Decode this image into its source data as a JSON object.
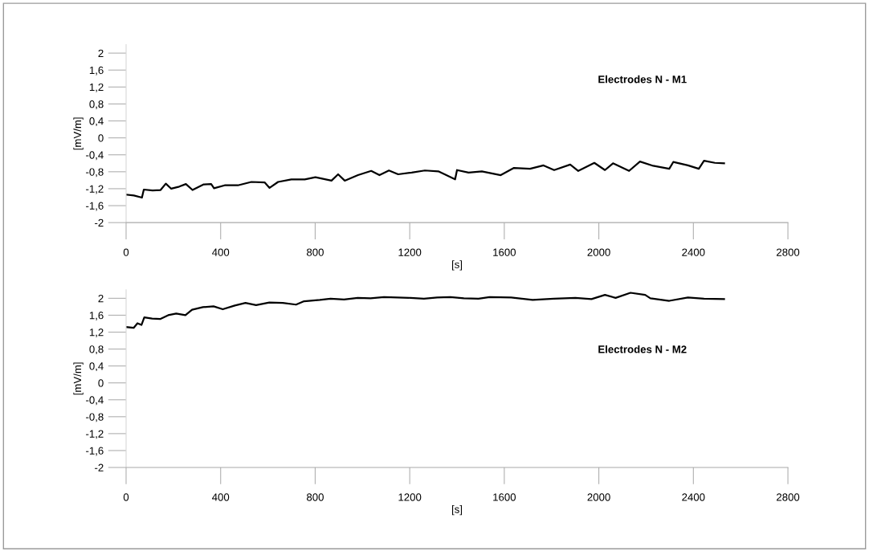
{
  "chart_data": [
    {
      "type": "line",
      "xlabel": "[s]",
      "ylabel": "[mV/m]",
      "annotations": [
        "Electrodes N - M1"
      ],
      "grid": false,
      "marker": "none",
      "line_style": "solid",
      "xlim": [
        0,
        2800
      ],
      "ylim": [
        -2,
        2.2
      ],
      "xticks": [
        0,
        400,
        800,
        1200,
        1600,
        2000,
        2400,
        2800
      ],
      "yticks": [
        -2,
        {
          "value": -1.6,
          "label": "-1,6"
        },
        {
          "value": -1.2,
          "label": "-1,2"
        },
        {
          "value": -0.8,
          "label": "-0,8"
        },
        {
          "value": -0.4,
          "label": "-0,4"
        },
        0,
        {
          "value": 0.4,
          "label": "0,4"
        },
        {
          "value": 0.8,
          "label": "0,8"
        },
        {
          "value": 1.2,
          "label": "1,2"
        },
        {
          "value": 1.6,
          "label": "1,6"
        },
        2
      ],
      "series": [
        {
          "color": "#000000",
          "x": [
            0,
            33,
            67,
            75,
            112,
            146,
            168,
            191,
            225,
            253,
            281,
            327,
            360,
            372,
            417,
            473,
            530,
            586,
            607,
            643,
            699,
            756,
            801,
            869,
            897,
            925,
            981,
            1037,
            1072,
            1112,
            1151,
            1208,
            1264,
            1321,
            1392,
            1400,
            1449,
            1505,
            1585,
            1641,
            1709,
            1766,
            1811,
            1879,
            1913,
            1981,
            2026,
            2060,
            2128,
            2174,
            2230,
            2298,
            2315,
            2377,
            2423,
            2445,
            2491,
            2530
          ],
          "values": [
            -1.34,
            -1.36,
            -1.41,
            -1.22,
            -1.24,
            -1.23,
            -1.08,
            -1.2,
            -1.15,
            -1.09,
            -1.23,
            -1.1,
            -1.09,
            -1.19,
            -1.12,
            -1.12,
            -1.04,
            -1.05,
            -1.18,
            -1.04,
            -0.98,
            -0.98,
            -0.93,
            -1.01,
            -0.86,
            -1.01,
            -0.88,
            -0.78,
            -0.88,
            -0.77,
            -0.86,
            -0.82,
            -0.77,
            -0.79,
            -0.98,
            -0.76,
            -0.82,
            -0.79,
            -0.88,
            -0.71,
            -0.73,
            -0.65,
            -0.76,
            -0.63,
            -0.78,
            -0.59,
            -0.76,
            -0.6,
            -0.78,
            -0.56,
            -0.66,
            -0.73,
            -0.57,
            -0.65,
            -0.73,
            -0.54,
            -0.59,
            -0.6
          ]
        }
      ]
    },
    {
      "type": "line",
      "xlabel": "[s]",
      "ylabel": "[mV/m]",
      "annotations": [
        "Electrodes N - M2"
      ],
      "grid": false,
      "marker": "none",
      "line_style": "solid",
      "xlim": [
        0,
        2800
      ],
      "ylim": [
        -2,
        2.2
      ],
      "xticks": [
        0,
        400,
        800,
        1200,
        1600,
        2000,
        2400,
        2800
      ],
      "yticks": [
        -2,
        {
          "value": -1.6,
          "label": "-1,6"
        },
        {
          "value": -1.2,
          "label": "-1,2"
        },
        {
          "value": -0.8,
          "label": "-0,8"
        },
        {
          "value": -0.4,
          "label": "-0,4"
        },
        0,
        {
          "value": 0.4,
          "label": "0,4"
        },
        {
          "value": 0.8,
          "label": "0,8"
        },
        {
          "value": 1.2,
          "label": "1,2"
        },
        {
          "value": 1.6,
          "label": "1,6"
        },
        2
      ],
      "series": [
        {
          "color": "#000000",
          "x": [
            0,
            32,
            48,
            65,
            77,
            110,
            144,
            178,
            212,
            251,
            279,
            325,
            370,
            409,
            460,
            505,
            550,
            606,
            663,
            719,
            753,
            820,
            865,
            922,
            980,
            1034,
            1091,
            1147,
            1203,
            1260,
            1316,
            1372,
            1429,
            1491,
            1538,
            1629,
            1720,
            1810,
            1901,
            1969,
            2026,
            2071,
            2134,
            2196,
            2218,
            2298,
            2377,
            2445,
            2530
          ],
          "values": [
            1.32,
            1.3,
            1.41,
            1.37,
            1.55,
            1.52,
            1.51,
            1.6,
            1.64,
            1.6,
            1.73,
            1.79,
            1.81,
            1.74,
            1.83,
            1.89,
            1.84,
            1.9,
            1.89,
            1.85,
            1.93,
            1.96,
            1.99,
            1.97,
            2.01,
            2.0,
            2.03,
            2.02,
            2.01,
            1.99,
            2.02,
            2.03,
            2.0,
            1.99,
            2.03,
            2.02,
            1.96,
            1.99,
            2.01,
            1.98,
            2.08,
            2.01,
            2.13,
            2.08,
            2.0,
            1.94,
            2.02,
            1.99,
            1.98
          ]
        }
      ]
    }
  ]
}
